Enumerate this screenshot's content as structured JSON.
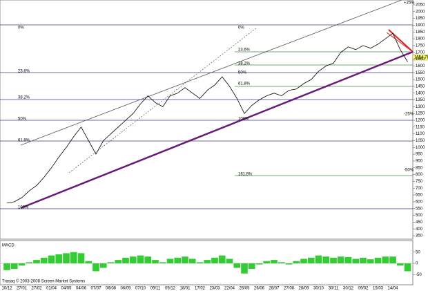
{
  "chart_data": [
    {
      "type": "line",
      "values": [
        590,
        600,
        630,
        680,
        720,
        780,
        850,
        930,
        1000,
        1080,
        1150,
        1050,
        950,
        1050,
        1100,
        1150,
        1200,
        1250,
        1320,
        1380,
        1330,
        1300,
        1380,
        1400,
        1440,
        1400,
        1360,
        1420,
        1460,
        1520,
        1450,
        1360,
        1250,
        1310,
        1350,
        1380,
        1400,
        1380,
        1420,
        1430,
        1470,
        1500,
        1560,
        1600,
        1620,
        1700,
        1740,
        1720,
        1750,
        1730,
        1760,
        1800,
        1840,
        1720,
        1630
      ],
      "color": "#000000",
      "ylim": [
        330,
        2075
      ],
      "yticks": [
        350,
        400,
        450,
        500,
        550,
        600,
        650,
        700,
        750,
        800,
        850,
        900,
        950,
        1000,
        1050,
        1100,
        1150,
        1200,
        1250,
        1300,
        1350,
        1400,
        1450,
        1500,
        1550,
        1600,
        1650,
        1700,
        1750,
        1800,
        1850,
        1900,
        1950,
        2000,
        2050
      ],
      "annotations": [
        "0%",
        "23.6%",
        "38.2%",
        "50%",
        "61.8%",
        "100%",
        "0%",
        "23.6%",
        "38.2%",
        "50%",
        "61.8%",
        "100%",
        "161.8%",
        "+25%",
        "-25%",
        "-50%"
      ],
      "last_price": 1654.78,
      "footer": "Trasaq © 2003-2008 Screen Market Systems"
    },
    {
      "type": "bar",
      "title": "MACD",
      "categories": [
        "10/12",
        null,
        "27/01",
        null,
        "27/02",
        null,
        "01/04",
        null,
        "04/05",
        null,
        "04/06",
        null,
        "07/07",
        null,
        "06/08",
        null,
        "06/09",
        null,
        "07/10",
        null,
        "09/11",
        null,
        "09/12",
        null,
        "18/01",
        null,
        "17/02",
        null,
        "23/03",
        null,
        "22/04",
        null,
        "26/05",
        null,
        "26/06",
        null,
        "28/07",
        null,
        "27/08",
        null,
        "28/09",
        null,
        "30/10",
        null,
        "30/11",
        null,
        "30/12",
        null,
        "09/02",
        null,
        "15/03",
        null,
        "14/04",
        null,
        null
      ],
      "values": [
        -30,
        -25,
        -10,
        5,
        15,
        25,
        35,
        40,
        45,
        50,
        45,
        10,
        -35,
        -20,
        5,
        15,
        25,
        30,
        35,
        30,
        15,
        5,
        20,
        25,
        30,
        20,
        5,
        15,
        25,
        35,
        20,
        -20,
        -45,
        -25,
        -5,
        10,
        15,
        5,
        -5,
        10,
        20,
        25,
        35,
        30,
        25,
        30,
        28,
        20,
        25,
        18,
        25,
        30,
        30,
        -10,
        -35
      ],
      "color": "#33cc33",
      "ylim": [
        -95,
        95
      ],
      "yticks": [
        50,
        0,
        -50
      ]
    }
  ]
}
